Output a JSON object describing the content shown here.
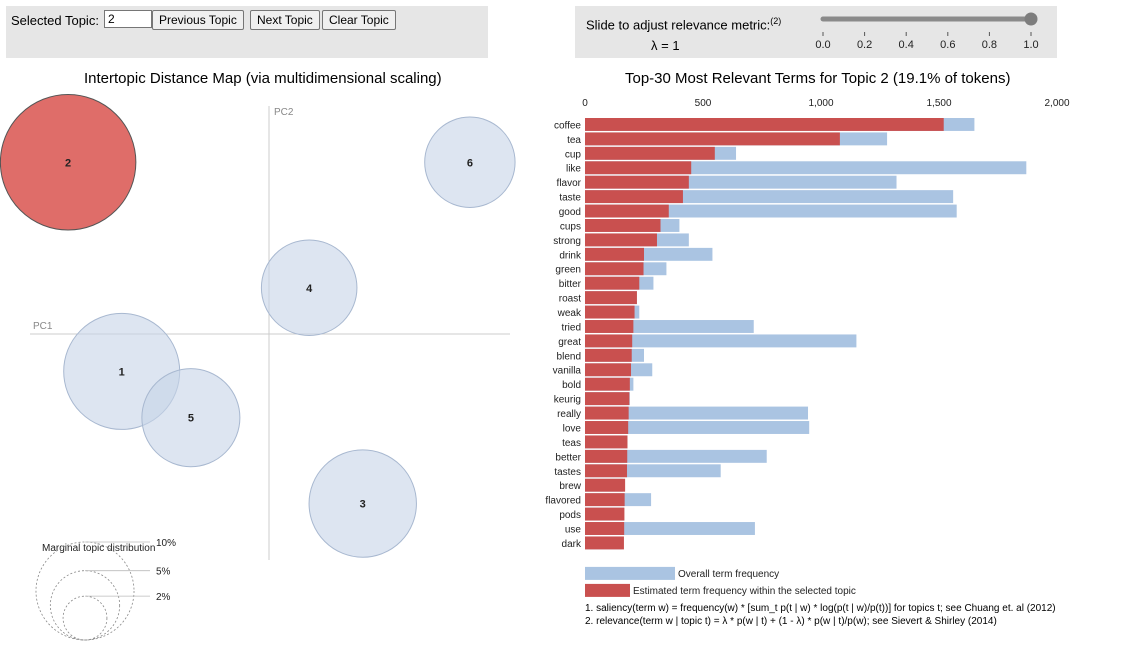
{
  "controls": {
    "selected_topic_label": "Selected Topic:",
    "selected_topic_value": "2",
    "prev_label": "Previous Topic",
    "next_label": "Next Topic",
    "clear_label": "Clear Topic",
    "slider_label": "Slide to adjust relevance metric:",
    "slider_footnote": "(2)",
    "lambda_text": "λ = 1",
    "lambda_value": 1.0,
    "slider_ticks": [
      "0.0",
      "0.2",
      "0.4",
      "0.6",
      "0.8",
      "1.0"
    ]
  },
  "colors": {
    "circle_fill": "#c7d4e8",
    "circle_stroke": "#a8b8d0",
    "selected_fill": "#d9534f",
    "overall_bar": "#aac4e2",
    "topic_bar": "#c9504f"
  },
  "chart_data": [
    {
      "type": "scatter",
      "title": "Intertopic Distance Map (via multidimensional scaling)",
      "xlabel": "PC1",
      "ylabel": "PC2",
      "xlim": [
        -1,
        1
      ],
      "ylim": [
        -1,
        1
      ],
      "topics": [
        {
          "label": "1",
          "pc1": -0.66,
          "pc2": -0.17,
          "share": 0.14
        },
        {
          "label": "2",
          "pc1": -0.9,
          "pc2": 0.78,
          "share": 0.191,
          "selected": true
        },
        {
          "label": "3",
          "pc1": 0.42,
          "pc2": -0.77,
          "share": 0.12
        },
        {
          "label": "4",
          "pc1": 0.18,
          "pc2": 0.21,
          "share": 0.095
        },
        {
          "label": "5",
          "pc1": -0.35,
          "pc2": -0.38,
          "share": 0.1
        },
        {
          "label": "6",
          "pc1": 0.9,
          "pc2": 0.78,
          "share": 0.085
        }
      ],
      "legend_title": "Marginal topic distribution",
      "legend_levels": [
        {
          "label": "2%",
          "value": 0.02
        },
        {
          "label": "5%",
          "value": 0.05
        },
        {
          "label": "10%",
          "value": 0.1
        }
      ]
    },
    {
      "type": "bar",
      "orientation": "horizontal",
      "title": "Top-30 Most Relevant Terms for Topic 2 (19.1% of tokens)",
      "xlim": [
        0,
        2000
      ],
      "xticks": [
        0,
        500,
        1000,
        1500,
        2000
      ],
      "xtick_labels": [
        "0",
        "500",
        "1,000",
        "1,500",
        "2,000"
      ],
      "categories": [
        "coffee",
        "tea",
        "cup",
        "like",
        "flavor",
        "taste",
        "good",
        "cups",
        "strong",
        "drink",
        "green",
        "bitter",
        "roast",
        "weak",
        "tried",
        "great",
        "blend",
        "vanilla",
        "bold",
        "keurig",
        "really",
        "love",
        "teas",
        "better",
        "tastes",
        "brew",
        "flavored",
        "pods",
        "use",
        "dark"
      ],
      "series": [
        {
          "name": "Overall term frequency",
          "values": [
            1650,
            1280,
            640,
            1870,
            1320,
            1560,
            1575,
            400,
            440,
            540,
            345,
            290,
            220,
            230,
            715,
            1150,
            250,
            285,
            205,
            190,
            945,
            950,
            180,
            770,
            575,
            160,
            280,
            165,
            720,
            155
          ]
        },
        {
          "name": "Estimated term frequency within the selected topic",
          "values": [
            1520,
            1080,
            550,
            450,
            440,
            415,
            355,
            320,
            305,
            250,
            248,
            230,
            220,
            210,
            205,
            200,
            198,
            195,
            190,
            188,
            185,
            183,
            180,
            179,
            178,
            170,
            168,
            167,
            166,
            165
          ]
        }
      ],
      "legend": [
        "Overall term frequency",
        "Estimated term frequency within the selected topic"
      ]
    }
  ],
  "notes": [
    "1. saliency(term w) = frequency(w) * [sum_t p(t | w) * log(p(t | w)/p(t))] for topics t; see Chuang et. al (2012)",
    "2. relevance(term w | topic t) = λ * p(w | t) + (1 - λ) * p(w | t)/p(w); see Sievert & Shirley (2014)"
  ]
}
